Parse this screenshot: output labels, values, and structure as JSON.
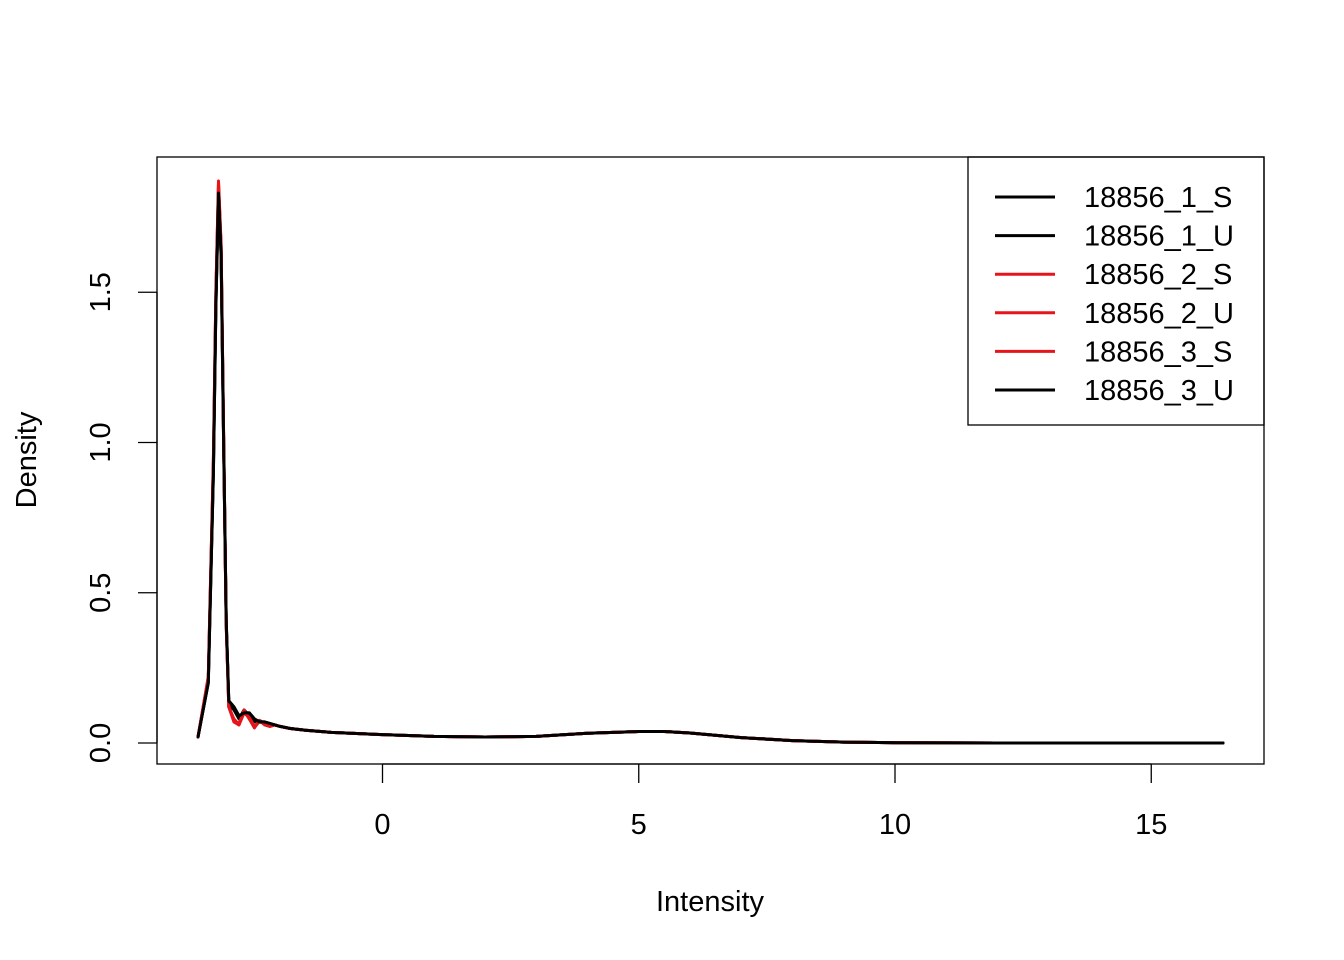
{
  "chart_data": {
    "type": "line",
    "title": "",
    "xlabel": "Intensity",
    "ylabel": "Density",
    "xlim": [
      -4.4,
      17.2
    ],
    "ylim": [
      -0.07,
      1.95
    ],
    "x_ticks": [
      0,
      5,
      10,
      15
    ],
    "y_ticks": [
      0.0,
      0.5,
      1.0,
      1.5
    ],
    "x_tick_labels": [
      "0",
      "5",
      "10",
      "15"
    ],
    "y_tick_labels": [
      "0.0",
      "0.5",
      "1.0",
      "1.5"
    ],
    "grid": false,
    "legend_position": "top-right",
    "series": [
      {
        "name": "18856_1_S",
        "color": "#000000",
        "x": [
          -3.6,
          -3.4,
          -3.3,
          -3.25,
          -3.2,
          -3.15,
          -3.1,
          -3.05,
          -3.0,
          -2.9,
          -2.8,
          -2.7,
          -2.6,
          -2.5,
          -2.4,
          -2.3,
          -2.2,
          -2.1,
          -2.0,
          -1.8,
          -1.5,
          -1.0,
          0.0,
          1.0,
          2.0,
          3.0,
          4.0,
          5.0,
          5.5,
          6.0,
          7.0,
          8.0,
          9.0,
          10.0,
          12.0,
          14.0,
          16.4
        ],
        "y": [
          0.02,
          0.2,
          0.9,
          1.45,
          1.82,
          1.62,
          1.0,
          0.4,
          0.14,
          0.12,
          0.09,
          0.1,
          0.1,
          0.08,
          0.07,
          0.07,
          0.065,
          0.06,
          0.055,
          0.048,
          0.042,
          0.035,
          0.028,
          0.022,
          0.02,
          0.022,
          0.032,
          0.038,
          0.038,
          0.033,
          0.018,
          0.008,
          0.003,
          0.001,
          0.0,
          0.0,
          0.0
        ]
      },
      {
        "name": "18856_1_U",
        "color": "#000000",
        "x": [
          -3.6,
          -3.4,
          -3.3,
          -3.25,
          -3.2,
          -3.15,
          -3.1,
          -3.05,
          -3.0,
          -2.9,
          -2.8,
          -2.7,
          -2.6,
          -2.5,
          -2.4,
          -2.3,
          -2.2,
          -2.1,
          -2.0,
          -1.8,
          -1.5,
          -1.0,
          0.0,
          1.0,
          2.0,
          3.0,
          4.0,
          5.0,
          5.5,
          6.0,
          7.0,
          8.0,
          9.0,
          10.0,
          12.0,
          14.0,
          16.4
        ],
        "y": [
          0.02,
          0.21,
          0.92,
          1.47,
          1.84,
          1.64,
          1.02,
          0.41,
          0.13,
          0.11,
          0.08,
          0.11,
          0.09,
          0.07,
          0.075,
          0.065,
          0.06,
          0.06,
          0.055,
          0.048,
          0.042,
          0.035,
          0.028,
          0.022,
          0.02,
          0.022,
          0.032,
          0.038,
          0.038,
          0.033,
          0.018,
          0.008,
          0.003,
          0.001,
          0.0,
          0.0,
          0.0
        ]
      },
      {
        "name": "18856_2_S",
        "color": "#e6141b",
        "x": [
          -3.6,
          -3.4,
          -3.3,
          -3.25,
          -3.2,
          -3.15,
          -3.1,
          -3.05,
          -3.0,
          -2.9,
          -2.8,
          -2.7,
          -2.6,
          -2.5,
          -2.4,
          -2.3,
          -2.2,
          -2.1,
          -2.0,
          -1.8,
          -1.5,
          -1.0,
          0.0,
          1.0,
          2.0,
          3.0,
          4.0,
          5.0,
          5.5,
          6.0,
          7.0,
          8.0,
          9.0,
          10.0,
          12.0,
          14.0,
          16.4
        ],
        "y": [
          0.02,
          0.22,
          0.95,
          1.5,
          1.87,
          1.66,
          1.03,
          0.4,
          0.12,
          0.07,
          0.06,
          0.11,
          0.08,
          0.05,
          0.075,
          0.06,
          0.055,
          0.06,
          0.055,
          0.048,
          0.042,
          0.035,
          0.028,
          0.022,
          0.02,
          0.022,
          0.032,
          0.038,
          0.038,
          0.033,
          0.018,
          0.008,
          0.003,
          0.001,
          0.0,
          0.0,
          0.0
        ]
      },
      {
        "name": "18856_2_U",
        "color": "#e6141b",
        "x": [
          -3.6,
          -3.4,
          -3.3,
          -3.25,
          -3.2,
          -3.15,
          -3.1,
          -3.05,
          -3.0,
          -2.9,
          -2.8,
          -2.7,
          -2.6,
          -2.5,
          -2.4,
          -2.3,
          -2.2,
          -2.1,
          -2.0,
          -1.8,
          -1.5,
          -1.0,
          0.0,
          1.0,
          2.0,
          3.0,
          4.0,
          5.0,
          5.5,
          6.0,
          7.0,
          8.0,
          9.0,
          10.0,
          12.0,
          14.0,
          16.4
        ],
        "y": [
          0.02,
          0.21,
          0.93,
          1.49,
          1.86,
          1.65,
          1.02,
          0.39,
          0.12,
          0.08,
          0.06,
          0.1,
          0.085,
          0.055,
          0.07,
          0.065,
          0.055,
          0.06,
          0.055,
          0.048,
          0.042,
          0.035,
          0.028,
          0.022,
          0.02,
          0.022,
          0.032,
          0.038,
          0.038,
          0.033,
          0.018,
          0.008,
          0.003,
          0.001,
          0.0,
          0.0,
          0.0
        ]
      },
      {
        "name": "18856_3_S",
        "color": "#e6141b",
        "x": [
          -3.6,
          -3.4,
          -3.3,
          -3.25,
          -3.2,
          -3.15,
          -3.1,
          -3.05,
          -3.0,
          -2.9,
          -2.8,
          -2.7,
          -2.6,
          -2.5,
          -2.4,
          -2.3,
          -2.2,
          -2.1,
          -2.0,
          -1.8,
          -1.5,
          -1.0,
          0.0,
          1.0,
          2.0,
          3.0,
          4.0,
          5.0,
          5.5,
          6.0,
          7.0,
          8.0,
          9.0,
          10.0,
          12.0,
          14.0,
          16.4
        ],
        "y": [
          0.02,
          0.22,
          0.94,
          1.5,
          1.86,
          1.65,
          1.02,
          0.4,
          0.12,
          0.075,
          0.065,
          0.105,
          0.08,
          0.052,
          0.072,
          0.062,
          0.056,
          0.06,
          0.055,
          0.048,
          0.042,
          0.035,
          0.028,
          0.022,
          0.02,
          0.022,
          0.032,
          0.038,
          0.038,
          0.033,
          0.018,
          0.008,
          0.003,
          0.001,
          0.0,
          0.0,
          0.0
        ]
      },
      {
        "name": "18856_3_U",
        "color": "#000000",
        "x": [
          -3.6,
          -3.4,
          -3.3,
          -3.25,
          -3.2,
          -3.15,
          -3.1,
          -3.05,
          -3.0,
          -2.9,
          -2.8,
          -2.7,
          -2.6,
          -2.5,
          -2.4,
          -2.3,
          -2.2,
          -2.1,
          -2.0,
          -1.8,
          -1.5,
          -1.0,
          0.0,
          1.0,
          2.0,
          3.0,
          4.0,
          5.0,
          5.5,
          6.0,
          7.0,
          8.0,
          9.0,
          10.0,
          12.0,
          14.0,
          16.4
        ],
        "y": [
          0.02,
          0.2,
          0.9,
          1.46,
          1.83,
          1.63,
          1.01,
          0.41,
          0.14,
          0.12,
          0.09,
          0.1,
          0.1,
          0.08,
          0.07,
          0.07,
          0.065,
          0.06,
          0.055,
          0.048,
          0.042,
          0.035,
          0.028,
          0.022,
          0.02,
          0.022,
          0.032,
          0.038,
          0.038,
          0.033,
          0.018,
          0.008,
          0.003,
          0.001,
          0.0,
          0.0,
          0.0
        ]
      }
    ]
  }
}
